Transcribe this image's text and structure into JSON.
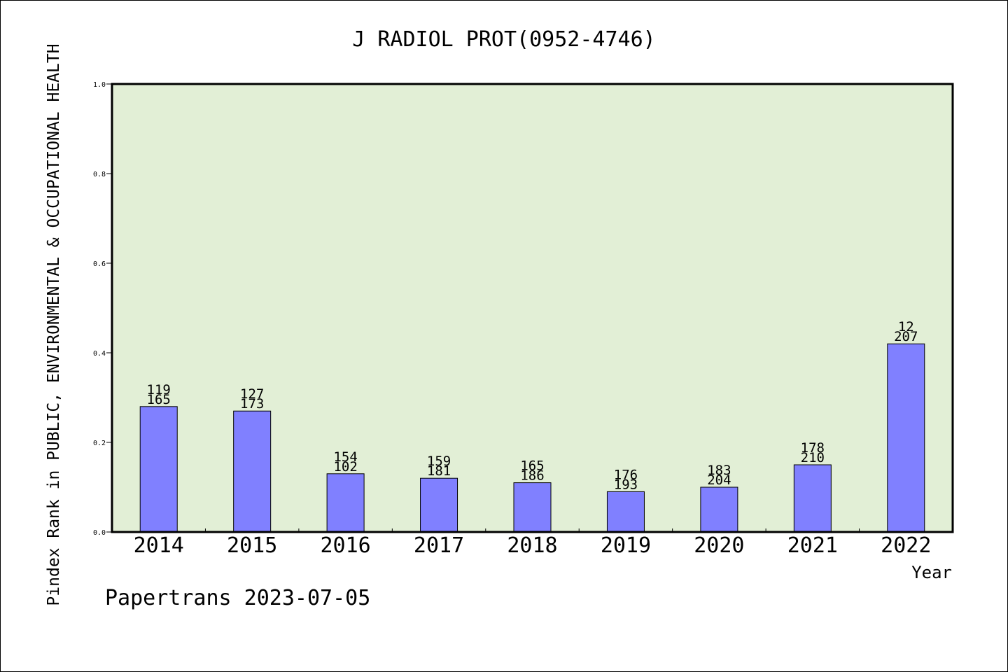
{
  "colors": {
    "plot_background": "#e2efd6",
    "bar_fill": "#8080ff",
    "bar_stroke": "#000000",
    "axis": "#000000"
  },
  "footer": {
    "credit": "Papertrans 2023-07-05"
  },
  "chart_data": {
    "type": "bar",
    "title": "J RADIOL PROT(0952-4746)",
    "xlabel": "Year",
    "ylabel": "Pindex Rank in PUBLIC, ENVIRONMENTAL & OCCUPATIONAL HEALTH",
    "ylim": [
      0,
      1.0
    ],
    "yticks": [
      "0.0",
      "0.2",
      "0.4",
      "0.6",
      "0.8",
      "1.0"
    ],
    "grid": false,
    "legend": "none",
    "categories": [
      "2014",
      "2015",
      "2016",
      "2017",
      "2018",
      "2019",
      "2020",
      "2021",
      "2022"
    ],
    "values": [
      0.28,
      0.27,
      0.13,
      0.12,
      0.11,
      0.09,
      0.1,
      0.15,
      0.42
    ],
    "labels_top": [
      "119",
      "127",
      "154",
      "159",
      "165",
      "176",
      "183",
      "178",
      "12"
    ],
    "labels_bottom": [
      "165",
      "173",
      "102",
      "181",
      "186",
      "193",
      "204",
      "210",
      "207"
    ]
  }
}
